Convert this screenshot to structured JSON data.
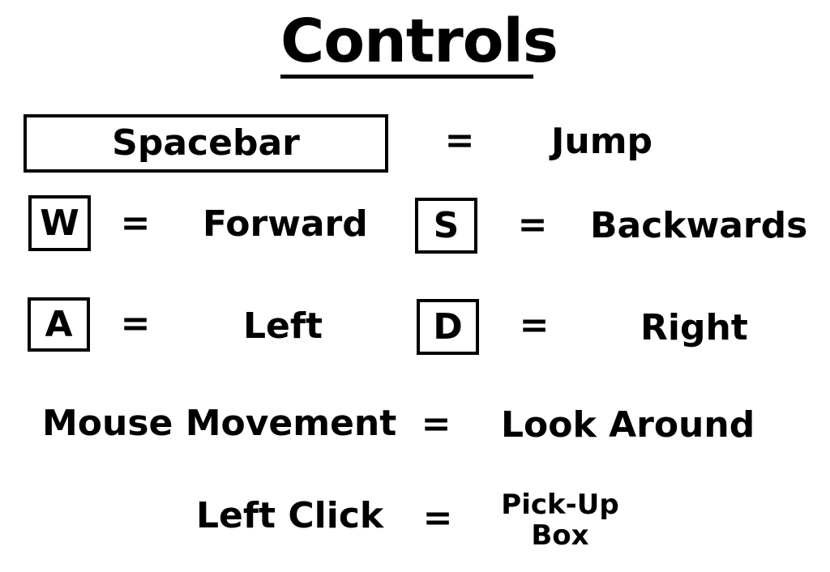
{
  "title": "Controls",
  "bindings": [
    {
      "key": "Spacebar",
      "separator": "=",
      "action": "Jump"
    },
    {
      "key": "W",
      "separator": "=",
      "action": "Forward"
    },
    {
      "key": "S",
      "separator": "=",
      "action": "Backwards"
    },
    {
      "key": "A",
      "separator": "=",
      "action": "Left"
    },
    {
      "key": "D",
      "separator": "=",
      "action": "Right"
    },
    {
      "key": "Mouse Movement",
      "separator": "=",
      "action": "Look Around"
    },
    {
      "key": "Left Click",
      "separator": "=",
      "action_lines": [
        "Pick-Up",
        "Box"
      ]
    }
  ]
}
